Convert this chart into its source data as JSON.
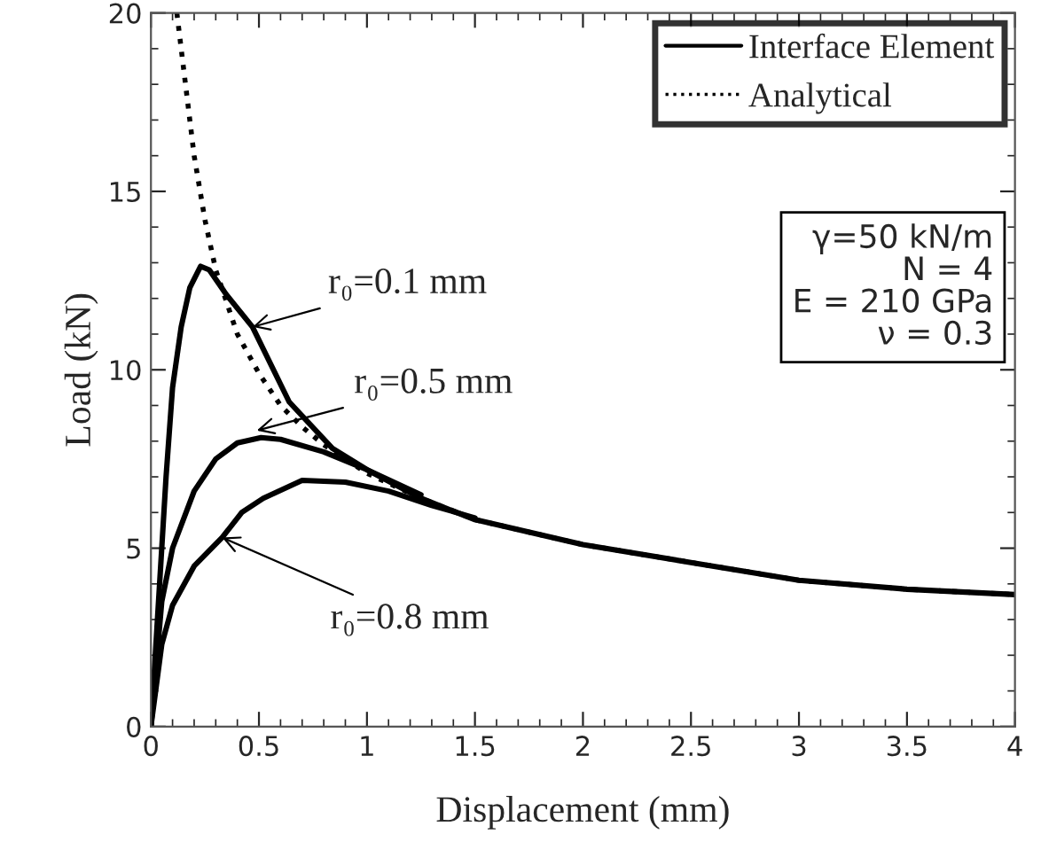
{
  "chart_data": {
    "type": "line",
    "xlabel": "Displacement (mm)",
    "ylabel": "Load (kN)",
    "xlim": [
      0,
      4
    ],
    "ylim": [
      0,
      20
    ],
    "xticks": [
      0,
      0.5,
      1,
      1.5,
      2,
      2.5,
      3,
      3.5,
      4
    ],
    "yticks": [
      0,
      5,
      10,
      15,
      20
    ],
    "grid": false,
    "legend": "top right",
    "series": [
      {
        "name": "Interface Element",
        "color": "#000000",
        "line_style": "solid",
        "x": [
          0,
          0.03,
          0.07,
          0.1,
          0.14,
          0.18,
          0.23,
          0.27,
          0.35,
          0.47,
          0.64,
          0.84,
          1,
          1.25,
          1.5,
          2,
          2.5,
          3,
          3.5,
          4
        ],
        "values": [
          0,
          3,
          7,
          9.5,
          11.2,
          12.3,
          12.9,
          12.8,
          12.1,
          11.2,
          9.1,
          7.8,
          7.2,
          6.4,
          5.8,
          5.1,
          4.6,
          4.1,
          3.85,
          3.7
        ]
      },
      {
        "color": "#000000",
        "line_style": "solid",
        "x": [
          0,
          0.05,
          0.1,
          0.2,
          0.3,
          0.4,
          0.51,
          0.6,
          0.8,
          1,
          1.25
        ],
        "values": [
          0,
          3.5,
          5,
          6.6,
          7.5,
          7.95,
          8.1,
          8.05,
          7.7,
          7.2,
          6.5
        ]
      },
      {
        "color": "#000000",
        "line_style": "solid",
        "x": [
          0,
          0.05,
          0.1,
          0.2,
          0.33,
          0.42,
          0.52,
          0.7,
          0.9,
          1.1,
          1.3,
          1.5
        ],
        "values": [
          0,
          2.3,
          3.4,
          4.5,
          5.3,
          6,
          6.4,
          6.9,
          6.85,
          6.6,
          6.2,
          5.85
        ]
      },
      {
        "name": "Analytical",
        "color": "#000000",
        "line_style": "dotted",
        "x": [
          0.12,
          0.15,
          0.2,
          0.25,
          0.3,
          0.4,
          0.5,
          0.6,
          0.7,
          0.8,
          1,
          1.25,
          1.5,
          2,
          2.5,
          3,
          3.5,
          4
        ],
        "values": [
          20,
          18.5,
          16,
          14.2,
          12.8,
          11,
          9.9,
          9,
          8.4,
          7.9,
          7.1,
          6.4,
          5.8,
          5.1,
          4.6,
          4.1,
          3.85,
          3.7
        ]
      }
    ],
    "annotations": [
      {
        "text": "r₀=0.1 mm",
        "x": 0.47,
        "y": 11.2
      },
      {
        "text": "r₀=0.5 mm",
        "x": 0.49,
        "y": 8.3
      },
      {
        "text": "r₀=0.8 mm",
        "x": 0.33,
        "y": 5.3
      },
      "γ=50 kN/m",
      "N = 4",
      "E = 210 GPa",
      "ν = 0.3"
    ]
  }
}
